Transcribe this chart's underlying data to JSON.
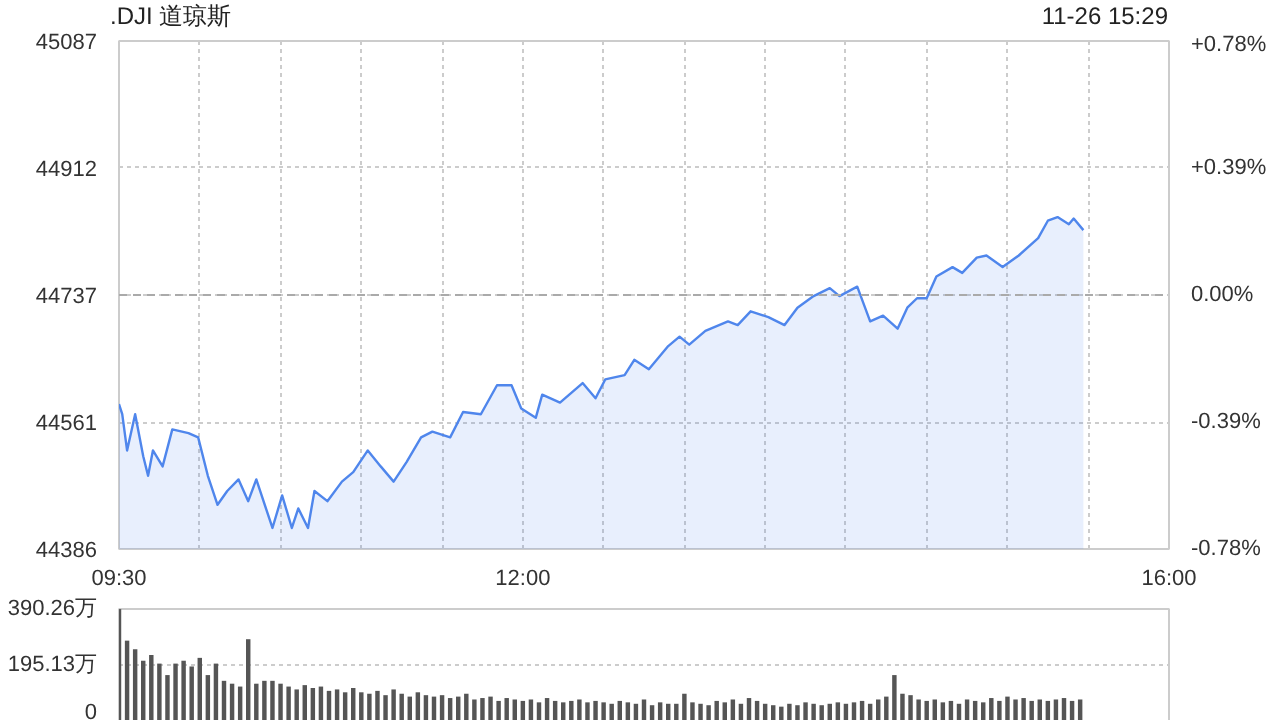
{
  "chart_data": [
    {
      "type": "area",
      "title": ".DJI 道琼斯",
      "annotations": [
        "11-26 15:29"
      ],
      "x": [
        9.5,
        9.52,
        9.55,
        9.6,
        9.65,
        9.68,
        9.71,
        9.77,
        9.83,
        9.93,
        9.99,
        10.05,
        10.11,
        10.17,
        10.24,
        10.3,
        10.35,
        10.45,
        10.51,
        10.57,
        10.61,
        10.67,
        10.71,
        10.79,
        10.88,
        10.95,
        11.04,
        11.12,
        11.2,
        11.28,
        11.37,
        11.44,
        11.55,
        11.63,
        11.74,
        11.84,
        11.93,
        11.99,
        12.08,
        12.12,
        12.23,
        12.37,
        12.45,
        12.51,
        12.63,
        12.69,
        12.78,
        12.9,
        12.97,
        13.03,
        13.13,
        13.27,
        13.33,
        13.41,
        13.52,
        13.62,
        13.7,
        13.8,
        13.9,
        13.96,
        14.07,
        14.15,
        14.23,
        14.32,
        14.38,
        14.44,
        14.5,
        14.56,
        14.66,
        14.72,
        14.81,
        14.87,
        14.97,
        15.07,
        15.19,
        15.25,
        15.31,
        15.38,
        15.41,
        15.47
      ],
      "series": [
        {
          "color": "#4f86ec",
          "values": [
            44586,
            44572,
            44522,
            44572,
            44514,
            44487,
            44522,
            44500,
            44551,
            44546,
            44540,
            44487,
            44447,
            44466,
            44482,
            44452,
            44482,
            44415,
            44460,
            44415,
            44442,
            44415,
            44466,
            44452,
            44479,
            44492,
            44522,
            44500,
            44479,
            44506,
            44540,
            44548,
            44540,
            44575,
            44572,
            44612,
            44612,
            44580,
            44567,
            44599,
            44588,
            44615,
            44594,
            44620,
            44626,
            44647,
            44634,
            44666,
            44679,
            44668,
            44687,
            44700,
            44695,
            44714,
            44706,
            44695,
            44719,
            44735,
            44746,
            44735,
            44748,
            44700,
            44708,
            44690,
            44719,
            44732,
            44732,
            44762,
            44775,
            44767,
            44788,
            44791,
            44775,
            44791,
            44815,
            44839,
            44844,
            44834,
            44842,
            44826
          ]
        }
      ],
      "xlim": [
        9.5,
        16
      ],
      "xticks": [
        {
          "value": 9.5,
          "label": "09:30"
        },
        {
          "value": 10,
          "label": null
        },
        {
          "value": 10.5,
          "label": null
        },
        {
          "value": 11,
          "label": null
        },
        {
          "value": 11.5,
          "label": null
        },
        {
          "value": 12,
          "label": "12:00"
        },
        {
          "value": 12.5,
          "label": null
        },
        {
          "value": 13,
          "label": null
        },
        {
          "value": 13.5,
          "label": null
        },
        {
          "value": 14,
          "label": null
        },
        {
          "value": 14.5,
          "label": null
        },
        {
          "value": 15,
          "label": null
        },
        {
          "value": 15.5,
          "label": null
        },
        {
          "value": 16,
          "label": "16:00"
        }
      ],
      "ylim": [
        44386,
        45087
      ],
      "yticks": [
        44386,
        44561,
        44737,
        44912,
        45087
      ],
      "y2lim": [
        -0.78,
        0.78
      ],
      "y2ticks": [
        {
          "value": -0.78,
          "label": "-0.78%"
        },
        {
          "value": -0.39,
          "label": "-0.39%"
        },
        {
          "value": 0,
          "label": "0.00%"
        },
        {
          "value": 0.39,
          "label": "+0.39%"
        },
        {
          "value": 0.78,
          "label": "+0.78%"
        }
      ],
      "ref_lines": [
        {
          "axis": "y",
          "value": 44737,
          "color": "#aaaaaa",
          "line_style": "dashed"
        }
      ],
      "grid": true
    },
    {
      "type": "bar",
      "color": "#555555",
      "xlim": [
        9.5,
        16
      ],
      "x": [
        9.5,
        9.55,
        9.6,
        9.65,
        9.7,
        9.75,
        9.8,
        9.85,
        9.9,
        9.95,
        10.0,
        10.05,
        10.1,
        10.15,
        10.2,
        10.25,
        10.3,
        10.35,
        10.4,
        10.45,
        10.5,
        10.55,
        10.6,
        10.65,
        10.7,
        10.75,
        10.8,
        10.85,
        10.9,
        10.95,
        11.0,
        11.05,
        11.1,
        11.15,
        11.2,
        11.25,
        11.3,
        11.35,
        11.4,
        11.45,
        11.5,
        11.55,
        11.6,
        11.65,
        11.7,
        11.75,
        11.8,
        11.85,
        11.9,
        11.95,
        12.0,
        12.05,
        12.1,
        12.15,
        12.2,
        12.25,
        12.3,
        12.35,
        12.4,
        12.45,
        12.5,
        12.55,
        12.6,
        12.65,
        12.7,
        12.75,
        12.8,
        12.85,
        12.9,
        12.95,
        13.0,
        13.05,
        13.1,
        13.15,
        13.2,
        13.25,
        13.3,
        13.35,
        13.4,
        13.45,
        13.5,
        13.55,
        13.6,
        13.65,
        13.7,
        13.75,
        13.8,
        13.85,
        13.9,
        13.95,
        14.0,
        14.05,
        14.1,
        14.15,
        14.2,
        14.25,
        14.3,
        14.35,
        14.4,
        14.45,
        14.5,
        14.55,
        14.6,
        14.65,
        14.7,
        14.75,
        14.8,
        14.85,
        14.9,
        14.95,
        15.0,
        15.05,
        15.1,
        15.15,
        15.2,
        15.25,
        15.3,
        15.35,
        15.4,
        15.45
      ],
      "values": [
        390,
        280,
        250,
        210,
        230,
        200,
        160,
        200,
        210,
        190,
        220,
        160,
        200,
        140,
        130,
        120,
        285,
        130,
        140,
        140,
        130,
        120,
        110,
        125,
        115,
        120,
        105,
        110,
        100,
        115,
        100,
        95,
        105,
        90,
        110,
        95,
        85,
        100,
        90,
        85,
        90,
        80,
        85,
        95,
        75,
        80,
        85,
        70,
        80,
        75,
        70,
        75,
        65,
        80,
        70,
        65,
        70,
        75,
        65,
        70,
        65,
        60,
        70,
        65,
        60,
        75,
        55,
        65,
        60,
        60,
        95,
        65,
        60,
        55,
        70,
        65,
        75,
        60,
        80,
        70,
        60,
        55,
        50,
        60,
        55,
        65,
        60,
        55,
        60,
        65,
        60,
        65,
        70,
        60,
        75,
        85,
        160,
        95,
        90,
        75,
        70,
        75,
        65,
        70,
        60,
        75,
        70,
        65,
        80,
        70,
        85,
        75,
        80,
        70,
        75,
        70,
        75,
        80,
        70,
        75
      ],
      "ylim": [
        0,
        390.26
      ],
      "yticks": [
        0,
        {
          "value": 195.13,
          "label": "195.13万"
        },
        {
          "value": 390.26,
          "label": "390.26万"
        }
      ],
      "grid": "y",
      "tick_labels": "y"
    }
  ]
}
